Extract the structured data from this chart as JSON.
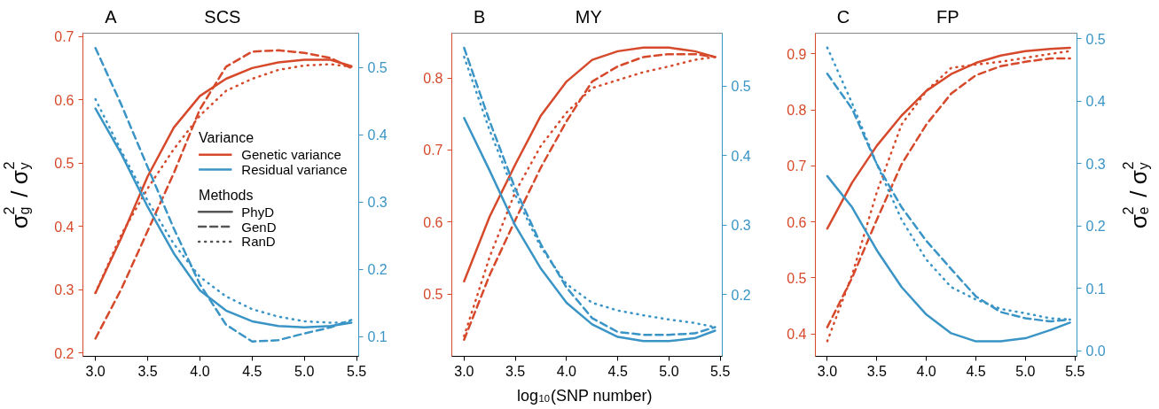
{
  "chart_data": [
    {
      "type": "line",
      "title": "SCS",
      "annotations": [
        "A",
        "Methods",
        "PhyD",
        "GenD",
        "RanD"
      ],
      "ylabel": "σ$_{g}$$^{2}$ / σ$_{y}$$^{2}$",
      "legend": "right",
      "legend_title": "Variance",
      "x": [
        3.0,
        3.25,
        3.5,
        3.75,
        4.0,
        4.25,
        4.5,
        4.75,
        5.0,
        5.25,
        5.45
      ],
      "xlim": [
        2.88,
        5.52
      ],
      "xticks": [
        {
          "value": 3,
          "label": "3.0"
        },
        3.5,
        {
          "value": 4,
          "label": "4.0"
        },
        4.5,
        {
          "value": 5,
          "label": "5.0"
        },
        5.5
      ],
      "ylim": [
        0.195,
        0.705
      ],
      "yticks": [
        0.2,
        0.3,
        0.4,
        0.5,
        0.6,
        0.7
      ],
      "y2lim": [
        0.071,
        0.551
      ],
      "y2ticks": [
        0.1,
        0.2,
        0.3,
        0.4,
        0.5
      ],
      "series": [
        {
          "name": "Genetic variance",
          "color": "#d6492a",
          "line_style": "solid",
          "values": [
            0.295,
            0.383,
            0.479,
            0.556,
            0.606,
            0.633,
            0.65,
            0.659,
            0.663,
            0.663,
            0.653
          ]
        },
        {
          "color": "#d6492a",
          "line_style": "dashed",
          "values": [
            0.223,
            0.302,
            0.393,
            0.484,
            0.585,
            0.652,
            0.676,
            0.678,
            0.674,
            0.666,
            0.65
          ]
        },
        {
          "color": "#d6492a",
          "line_style": "dotted",
          "values": [
            0.295,
            0.388,
            0.46,
            0.522,
            0.575,
            0.614,
            0.633,
            0.647,
            0.654,
            0.656,
            0.652
          ]
        },
        {
          "name": "Residual variance",
          "color": "#3a95c6",
          "line_style": "solid",
          "axis": "y2",
          "values": [
            0.439,
            0.371,
            0.293,
            0.224,
            0.169,
            0.139,
            0.123,
            0.116,
            0.114,
            0.116,
            0.121
          ]
        },
        {
          "color": "#3a95c6",
          "line_style": "dashed",
          "axis": "y2",
          "values": [
            0.529,
            0.444,
            0.352,
            0.261,
            0.178,
            0.118,
            0.093,
            0.095,
            0.105,
            0.114,
            0.125
          ]
        },
        {
          "color": "#3a95c6",
          "line_style": "dotted",
          "axis": "y2",
          "values": [
            0.453,
            0.375,
            0.302,
            0.238,
            0.189,
            0.16,
            0.141,
            0.13,
            0.123,
            0.121,
            0.121
          ]
        }
      ]
    },
    {
      "type": "line",
      "title": "MY",
      "annotations": [
        "B"
      ],
      "xlabel": "log$_{10}$(SNP number)",
      "x": [
        3.0,
        3.25,
        3.5,
        3.75,
        4.0,
        4.25,
        4.5,
        4.75,
        5.0,
        5.25,
        5.45
      ],
      "xlim": [
        2.88,
        5.52
      ],
      "xticks": [
        {
          "value": 3,
          "label": "3.0"
        },
        3.5,
        {
          "value": 4,
          "label": "4.0"
        },
        4.5,
        {
          "value": 5,
          "label": "5.0"
        },
        5.5
      ],
      "ylim": [
        0.414,
        0.862
      ],
      "yticks": [
        0.5,
        0.6,
        0.7,
        0.8
      ],
      "y2lim": [
        0.111,
        0.576
      ],
      "y2ticks": [
        0.2,
        0.3,
        0.4,
        0.5
      ],
      "series": [
        {
          "color": "#d6492a",
          "line_style": "solid",
          "values": [
            0.518,
            0.608,
            0.68,
            0.748,
            0.795,
            0.825,
            0.837,
            0.842,
            0.842,
            0.837,
            0.829
          ]
        },
        {
          "color": "#d6492a",
          "line_style": "dashed",
          "values": [
            0.437,
            0.527,
            0.603,
            0.676,
            0.74,
            0.795,
            0.816,
            0.829,
            0.833,
            0.833,
            0.829
          ]
        },
        {
          "color": "#d6492a",
          "line_style": "dotted",
          "values": [
            0.442,
            0.552,
            0.642,
            0.706,
            0.752,
            0.786,
            0.797,
            0.808,
            0.816,
            0.825,
            0.829
          ]
        },
        {
          "color": "#3a95c6",
          "line_style": "solid",
          "axis": "y2",
          "values": [
            0.454,
            0.378,
            0.299,
            0.237,
            0.188,
            0.157,
            0.139,
            0.133,
            0.133,
            0.137,
            0.148
          ]
        },
        {
          "color": "#3a95c6",
          "line_style": "dashed",
          "axis": "y2",
          "values": [
            0.555,
            0.449,
            0.352,
            0.272,
            0.21,
            0.166,
            0.146,
            0.142,
            0.142,
            0.144,
            0.153
          ]
        },
        {
          "color": "#3a95c6",
          "line_style": "dotted",
          "axis": "y2",
          "values": [
            0.542,
            0.436,
            0.343,
            0.268,
            0.215,
            0.188,
            0.177,
            0.17,
            0.164,
            0.159,
            0.153
          ]
        }
      ]
    },
    {
      "type": "line",
      "title": "FP",
      "annotations": [
        "C"
      ],
      "y2label": "σ$_{e}$$^{2}$ / σ$_{y}$$^{2}$",
      "x": [
        3.0,
        3.25,
        3.5,
        3.75,
        4.0,
        4.25,
        4.5,
        4.75,
        5.0,
        5.25,
        5.45
      ],
      "xlim": [
        2.88,
        5.52
      ],
      "xticks": [
        {
          "value": 3,
          "label": "3.0"
        },
        3.5,
        {
          "value": 4,
          "label": "4.0"
        },
        4.5,
        {
          "value": 5,
          "label": "5.0"
        },
        5.5
      ],
      "ylim": [
        0.36,
        0.937
      ],
      "yticks": [
        0.4,
        0.5,
        0.6,
        0.7,
        0.8,
        0.9
      ],
      "y2lim": [
        -0.009,
        0.509
      ],
      "y2ticks": [
        {
          "value": 0.0,
          "label": "0.0"
        },
        0.1,
        0.2,
        0.3,
        0.4,
        0.5
      ],
      "series": [
        {
          "color": "#d6492a",
          "line_style": "solid",
          "values": [
            0.588,
            0.67,
            0.736,
            0.79,
            0.834,
            0.864,
            0.884,
            0.897,
            0.905,
            0.909,
            0.911
          ]
        },
        {
          "color": "#d6492a",
          "line_style": "dashed",
          "values": [
            0.412,
            0.5,
            0.604,
            0.703,
            0.774,
            0.829,
            0.862,
            0.878,
            0.886,
            0.892,
            0.892
          ]
        },
        {
          "color": "#d6492a",
          "line_style": "dotted",
          "values": [
            0.387,
            0.505,
            0.653,
            0.774,
            0.834,
            0.875,
            0.881,
            0.886,
            0.893,
            0.9,
            0.905
          ]
        },
        {
          "color": "#3a95c6",
          "line_style": "solid",
          "axis": "y2",
          "values": [
            0.28,
            0.23,
            0.161,
            0.102,
            0.058,
            0.028,
            0.015,
            0.015,
            0.02,
            0.033,
            0.045
          ]
        },
        {
          "color": "#3a95c6",
          "line_style": "dashed",
          "axis": "y2",
          "values": [
            0.444,
            0.388,
            0.299,
            0.23,
            0.176,
            0.131,
            0.087,
            0.062,
            0.052,
            0.047,
            0.05
          ]
        },
        {
          "color": "#3a95c6",
          "line_style": "dotted",
          "axis": "y2",
          "values": [
            0.486,
            0.397,
            0.299,
            0.21,
            0.146,
            0.102,
            0.082,
            0.067,
            0.06,
            0.052,
            0.05
          ]
        }
      ]
    }
  ]
}
